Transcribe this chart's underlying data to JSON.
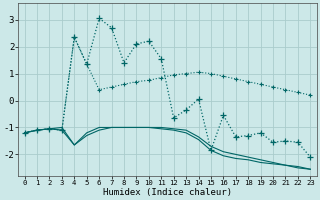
{
  "xlabel": "Humidex (Indice chaleur)",
  "bg_color": "#cce8e8",
  "grid_color": "#aacccc",
  "line_color": "#006666",
  "xlim": [
    -0.5,
    23.5
  ],
  "ylim": [
    -2.8,
    3.6
  ],
  "xticks": [
    0,
    1,
    2,
    3,
    4,
    5,
    6,
    7,
    8,
    9,
    10,
    11,
    12,
    13,
    14,
    15,
    16,
    17,
    18,
    19,
    20,
    21,
    22,
    23
  ],
  "yticks": [
    -2,
    -1,
    0,
    1,
    2,
    3
  ],
  "main_x": [
    0,
    1,
    2,
    3,
    4,
    5,
    6,
    7,
    8,
    9,
    10,
    11,
    12,
    13,
    14,
    15,
    16,
    17,
    18,
    19,
    20,
    21,
    22,
    23
  ],
  "main_y": [
    -1.2,
    -1.1,
    -1.05,
    -1.1,
    2.35,
    1.35,
    3.05,
    2.7,
    1.4,
    2.1,
    2.2,
    1.55,
    -0.65,
    -0.35,
    0.05,
    -1.85,
    -0.55,
    -1.35,
    -1.3,
    -1.2,
    -1.55,
    -1.5,
    -1.55,
    -2.1
  ],
  "line2_x": [
    0,
    1,
    2,
    3,
    4,
    5,
    6,
    7,
    8,
    9,
    10,
    11,
    12,
    13,
    14,
    15,
    16,
    17,
    18,
    19,
    20,
    21,
    22,
    23
  ],
  "line2_y": [
    -1.2,
    -1.1,
    -1.05,
    -1.1,
    2.35,
    1.35,
    0.4,
    0.5,
    0.6,
    0.7,
    0.75,
    0.85,
    0.95,
    1.0,
    1.05,
    1.0,
    0.9,
    0.8,
    0.7,
    0.6,
    0.5,
    0.4,
    0.3,
    0.2
  ],
  "flat1_x": [
    0,
    1,
    2,
    3,
    4,
    5,
    6,
    7,
    8,
    9,
    10,
    11,
    12,
    13,
    14,
    15,
    16,
    17,
    18,
    19,
    20,
    21,
    22,
    23
  ],
  "flat1_y": [
    -1.2,
    -1.1,
    -1.05,
    -1.1,
    -1.65,
    -1.3,
    -1.1,
    -1.0,
    -1.0,
    -1.0,
    -1.0,
    -1.05,
    -1.1,
    -1.2,
    -1.45,
    -1.85,
    -2.05,
    -2.15,
    -2.2,
    -2.3,
    -2.35,
    -2.4,
    -2.5,
    -2.55
  ],
  "flat2_x": [
    0,
    1,
    2,
    3,
    4,
    5,
    6,
    7,
    8,
    9,
    10,
    11,
    12,
    13,
    14,
    15,
    16,
    17,
    18,
    19,
    20,
    21,
    22,
    23
  ],
  "flat2_y": [
    -1.2,
    -1.1,
    -1.05,
    -1.0,
    -1.65,
    -1.2,
    -1.0,
    -1.0,
    -1.0,
    -1.0,
    -1.0,
    -1.0,
    -1.05,
    -1.1,
    -1.35,
    -1.7,
    -1.9,
    -2.0,
    -2.1,
    -2.2,
    -2.3,
    -2.4,
    -2.45,
    -2.55
  ]
}
